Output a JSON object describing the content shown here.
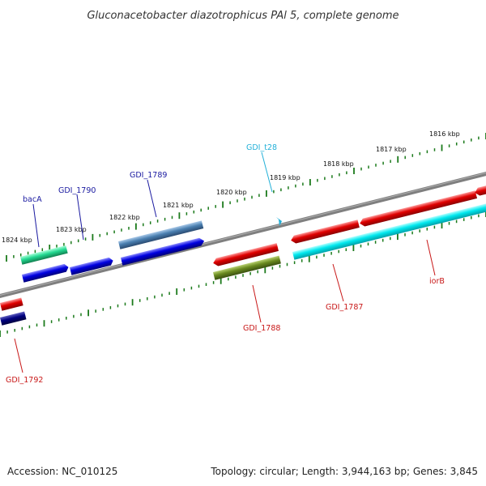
{
  "title": "Gluconacetobacter diazotrophicus PAl 5, complete genome",
  "footer": {
    "accession": "Accession: NC_010125",
    "topology": "Topology: circular; Length: 3,944,163 bp; Genes: 3,845"
  },
  "kbp_labels": [
    "1824 kbp",
    "1823 kbp",
    "1822 kbp",
    "1821 kbp",
    "1820 kbp",
    "1819 kbp",
    "1818 kbp",
    "1817 kbp",
    "1816 kbp"
  ],
  "gene_labels": {
    "bacA": "bacA",
    "gdi1790": "GDI_1790",
    "gdi1789": "GDI_1789",
    "gdit28": "GDI_t28",
    "gdi1788": "GDI_1788",
    "gdi1787": "GDI_1787",
    "iorB": "iorB",
    "gdi1792": "GDI_1792"
  },
  "colors": {
    "backbone": "#7f7f7f",
    "ticks": "#1b7a1b",
    "blue_label": "#1a1aa0",
    "cyan_label": "#22b0d8",
    "red_label": "#c81818",
    "red": "#e00000",
    "blue": "#0000e0",
    "steel": "#4a7fb0",
    "green": "#22d890",
    "olive": "#6a8a20",
    "cyan": "#00e8ee",
    "navy": "#000080"
  }
}
